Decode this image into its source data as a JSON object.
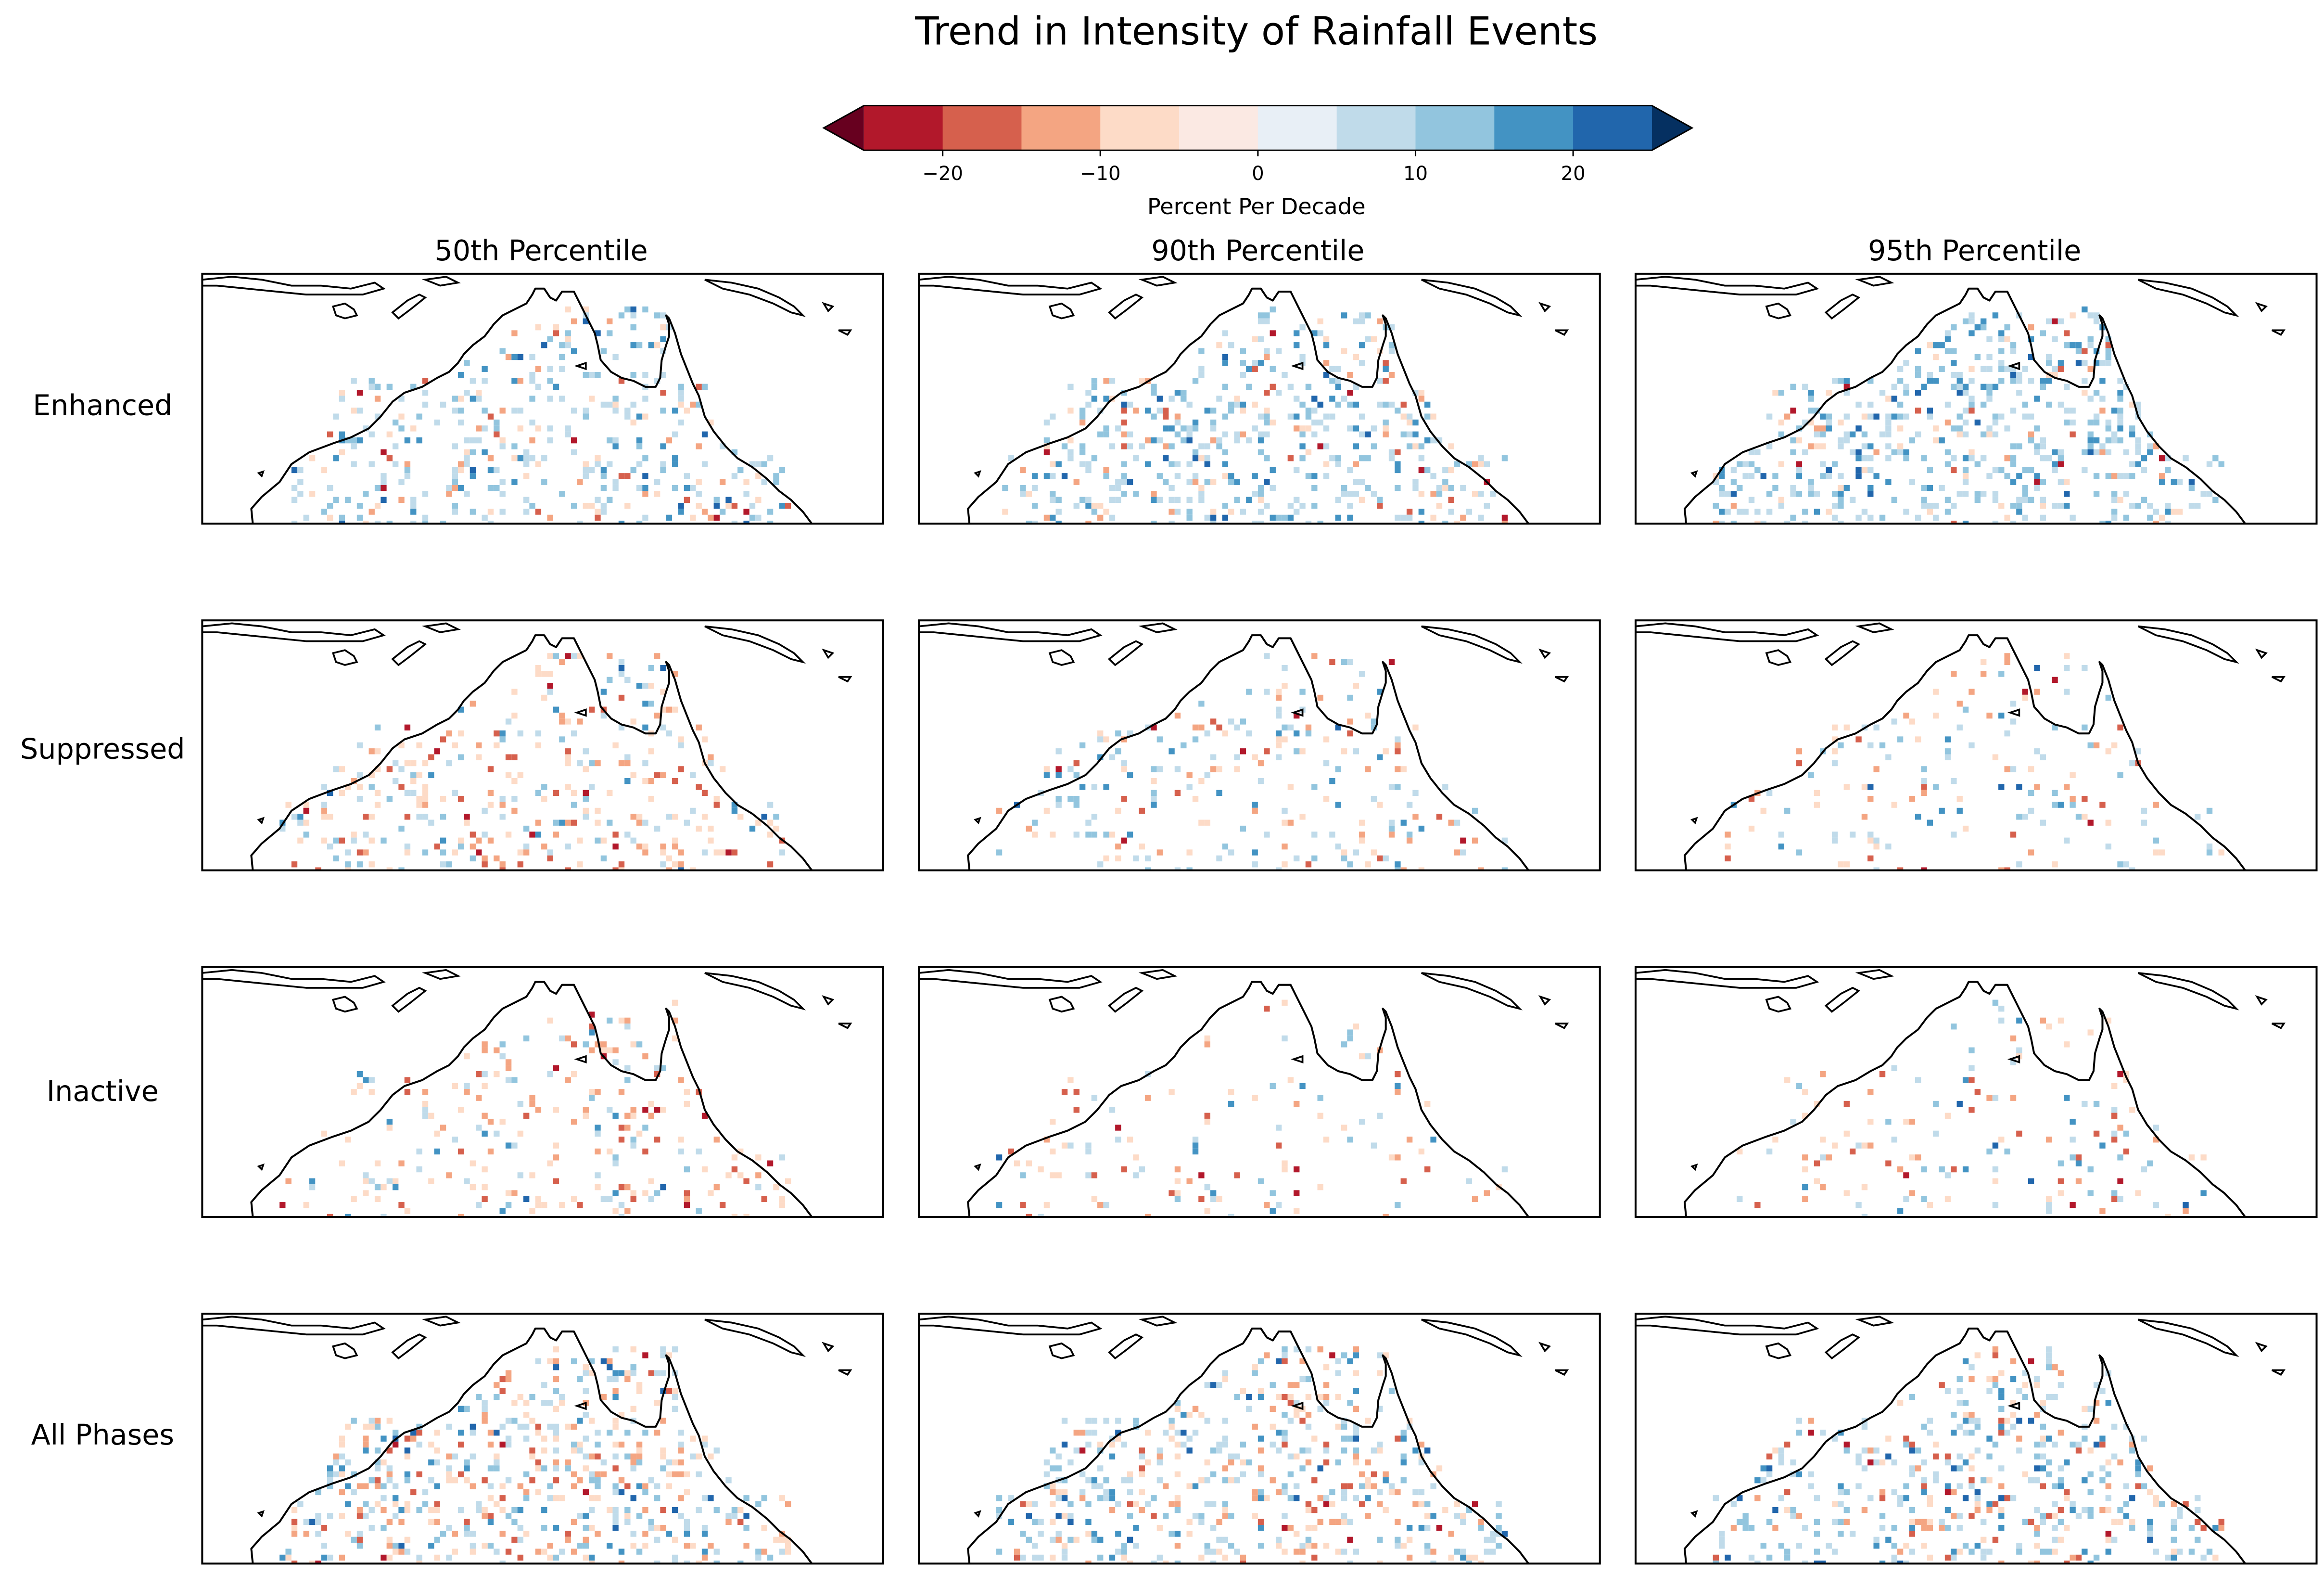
{
  "title": "Trend in Intensity of Rainfall Events",
  "colorbar": {
    "label": "Percent Per Decade",
    "range": [
      -25,
      25
    ],
    "step": 5,
    "ticks": [
      -20,
      -10,
      0,
      10,
      20
    ],
    "tick_labels": [
      "−20",
      "−10",
      "0",
      "10",
      "20"
    ],
    "extend": "both",
    "colors": [
      "#b2182b",
      "#d6604d",
      "#f4a582",
      "#fddbc7",
      "#fbe9e3",
      "#e8eff6",
      "#c0dbea",
      "#92c5de",
      "#4393c3",
      "#2166ac"
    ],
    "under_color": "#67001f",
    "over_color": "#053061"
  },
  "columns": [
    "50th Percentile",
    "90th Percentile",
    "95th Percentile"
  ],
  "rows": [
    "Enhanced",
    "Suppressed",
    "Inactive",
    "All Phases"
  ],
  "map": {
    "region": "Northern Australia",
    "coastline_color": "#000000",
    "background": "#ffffff"
  }
}
